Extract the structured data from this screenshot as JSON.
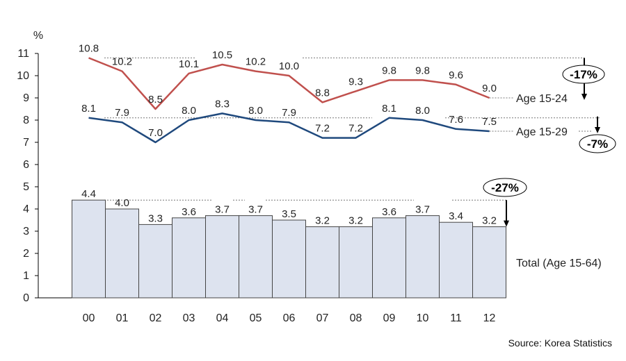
{
  "chart_data": {
    "type": "bar+line",
    "ylabel": "%",
    "ylim": [
      0,
      11
    ],
    "yticks": [
      "0",
      "1",
      "2",
      "3",
      "4",
      "5",
      "6",
      "7",
      "8",
      "9",
      "10",
      "11"
    ],
    "categories": [
      "00",
      "01",
      "02",
      "03",
      "04",
      "05",
      "06",
      "07",
      "08",
      "09",
      "10",
      "11",
      "12"
    ],
    "bar_series": {
      "name": "Total (Age 15-64)",
      "color": "#dde3ef",
      "values": [
        4.4,
        4.0,
        3.3,
        3.6,
        3.7,
        3.7,
        3.5,
        3.2,
        3.2,
        3.6,
        3.7,
        3.4,
        3.2
      ],
      "labels": [
        "4.4",
        "4.0",
        "3.3",
        "3.6",
        "3.7",
        "3.7",
        "3.5",
        "3.2",
        "3.2",
        "3.6",
        "3.7",
        "3.4",
        "3.2"
      ]
    },
    "series": [
      {
        "name": "Age 15-24",
        "color": "#c0504d",
        "values": [
          10.8,
          10.2,
          8.5,
          10.1,
          10.5,
          10.2,
          10.0,
          8.8,
          9.3,
          9.8,
          9.8,
          9.6,
          9.0
        ],
        "labels": [
          "10.8",
          "10.2",
          "8.5",
          "10.1",
          "10.5",
          "10.2",
          "10.0",
          "8.8",
          "9.3",
          "9.8",
          "9.8",
          "9.6",
          "9.0"
        ]
      },
      {
        "name": "Age 15-29",
        "color": "#1f497d",
        "values": [
          8.1,
          7.9,
          7.0,
          8.0,
          8.3,
          8.0,
          7.9,
          7.2,
          7.2,
          8.1,
          8.0,
          7.6,
          7.5
        ],
        "labels": [
          "8.1",
          "7.9",
          "7.0",
          "8.0",
          "8.3",
          "8.0",
          "7.9",
          "7.2",
          "7.2",
          "8.1",
          "8.0",
          "7.6",
          "7.5"
        ]
      }
    ],
    "changes": [
      {
        "series": "Age 15-24",
        "label": "-17%"
      },
      {
        "series": "Age 15-29",
        "label": "-7%"
      },
      {
        "series": "Total (Age 15-64)",
        "label": "-27%"
      }
    ],
    "source": "Source: Korea Statistics"
  }
}
